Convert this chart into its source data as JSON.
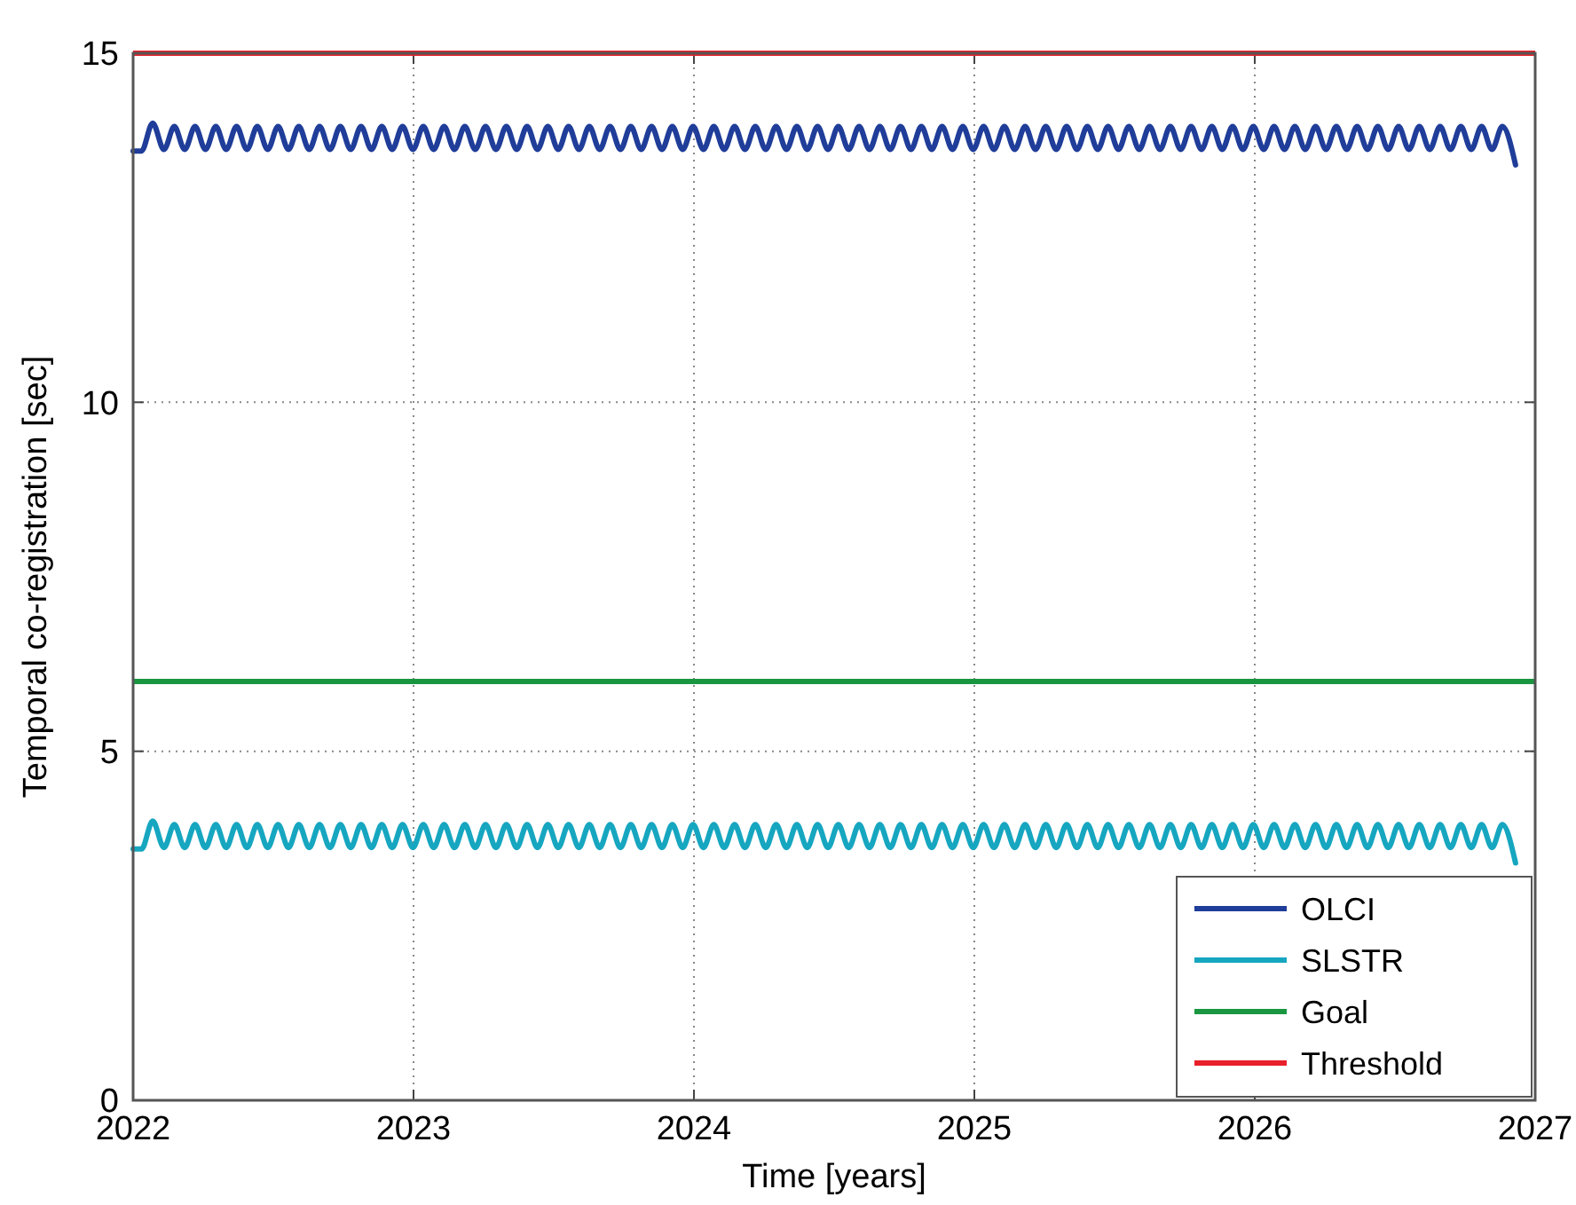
{
  "chart_data": {
    "type": "line",
    "xlabel": "Time [years]",
    "ylabel": "Temporal co-registration [sec]",
    "xlim": [
      2022,
      2027
    ],
    "ylim": [
      0,
      15
    ],
    "xticks": [
      2022,
      2023,
      2024,
      2025,
      2026,
      2027
    ],
    "yticks": [
      0,
      5,
      10,
      15
    ],
    "grid": true,
    "legend": "bottom right",
    "x": [
      2022.0,
      2022.03,
      2022.07,
      2022.11,
      2022.147,
      2022.184,
      2022.221,
      2022.258,
      2022.295,
      2022.332,
      2022.369,
      2022.406,
      2022.443,
      2022.48,
      2022.517,
      2022.554,
      2022.591,
      2022.628,
      2022.665,
      2022.702,
      2022.739,
      2022.776,
      2022.813,
      2022.85,
      2022.887,
      2022.924,
      2022.961,
      2022.998,
      2023.035,
      2023.072,
      2023.109,
      2023.146,
      2023.183,
      2023.22,
      2023.257,
      2023.294,
      2023.331,
      2023.368,
      2023.405,
      2023.442,
      2023.479,
      2023.516,
      2023.553,
      2023.59,
      2023.627,
      2023.664,
      2023.701,
      2023.738,
      2023.775,
      2023.812,
      2023.849,
      2023.886,
      2023.923,
      2023.96,
      2023.997,
      2024.034,
      2024.071,
      2024.108,
      2024.145,
      2024.182,
      2024.219,
      2024.256,
      2024.293,
      2024.33,
      2024.367,
      2024.404,
      2024.441,
      2024.478,
      2024.515,
      2024.552,
      2024.589,
      2024.626,
      2024.663,
      2024.7,
      2024.737,
      2024.774,
      2024.811,
      2024.848,
      2024.885,
      2024.922,
      2024.959,
      2024.996,
      2025.033,
      2025.07,
      2025.107,
      2025.144,
      2025.181,
      2025.218,
      2025.255,
      2025.292,
      2025.329,
      2025.366,
      2025.403,
      2025.44,
      2025.477,
      2025.514,
      2025.551,
      2025.588,
      2025.625,
      2025.662,
      2025.699,
      2025.736,
      2025.773,
      2025.81,
      2025.847,
      2025.884,
      2025.921,
      2025.958,
      2025.995,
      2026.032,
      2026.069,
      2026.106,
      2026.143,
      2026.18,
      2026.217,
      2026.254,
      2026.291,
      2026.328,
      2026.365,
      2026.402,
      2026.439,
      2026.476,
      2026.513,
      2026.55,
      2026.587,
      2026.624,
      2026.661,
      2026.698,
      2026.735,
      2026.772,
      2026.809,
      2026.846,
      2026.883,
      2026.93
    ],
    "series": [
      {
        "name": "OLCI",
        "color": "#1f3d99",
        "values": [
          13.6,
          13.6,
          14.0,
          13.62,
          13.95,
          13.62,
          13.95,
          13.62,
          13.95,
          13.62,
          13.95,
          13.62,
          13.95,
          13.62,
          13.95,
          13.62,
          13.95,
          13.62,
          13.95,
          13.62,
          13.95,
          13.62,
          13.95,
          13.62,
          13.95,
          13.62,
          13.95,
          13.62,
          13.95,
          13.62,
          13.95,
          13.62,
          13.95,
          13.62,
          13.95,
          13.62,
          13.95,
          13.62,
          13.95,
          13.62,
          13.95,
          13.62,
          13.95,
          13.62,
          13.95,
          13.62,
          13.95,
          13.62,
          13.95,
          13.62,
          13.95,
          13.62,
          13.95,
          13.62,
          13.95,
          13.62,
          13.95,
          13.62,
          13.95,
          13.62,
          13.95,
          13.62,
          13.95,
          13.62,
          13.95,
          13.62,
          13.95,
          13.62,
          13.95,
          13.62,
          13.95,
          13.62,
          13.95,
          13.62,
          13.95,
          13.62,
          13.95,
          13.62,
          13.95,
          13.62,
          13.95,
          13.62,
          13.95,
          13.62,
          13.95,
          13.62,
          13.95,
          13.62,
          13.95,
          13.62,
          13.95,
          13.62,
          13.95,
          13.62,
          13.95,
          13.62,
          13.95,
          13.62,
          13.95,
          13.62,
          13.95,
          13.62,
          13.95,
          13.62,
          13.95,
          13.62,
          13.95,
          13.62,
          13.95,
          13.62,
          13.95,
          13.62,
          13.95,
          13.62,
          13.95,
          13.62,
          13.95,
          13.62,
          13.95,
          13.62,
          13.95,
          13.62,
          13.95,
          13.62,
          13.95,
          13.62,
          13.95,
          13.62,
          13.95,
          13.62,
          13.95,
          13.62,
          13.95,
          13.4
        ]
      },
      {
        "name": "SLSTR",
        "color": "#16a6c0",
        "values": [
          3.6,
          3.6,
          4.0,
          3.62,
          3.95,
          3.62,
          3.95,
          3.62,
          3.95,
          3.62,
          3.95,
          3.62,
          3.95,
          3.62,
          3.95,
          3.62,
          3.95,
          3.62,
          3.95,
          3.62,
          3.95,
          3.62,
          3.95,
          3.62,
          3.95,
          3.62,
          3.95,
          3.62,
          3.95,
          3.62,
          3.95,
          3.62,
          3.95,
          3.62,
          3.95,
          3.62,
          3.95,
          3.62,
          3.95,
          3.62,
          3.95,
          3.62,
          3.95,
          3.62,
          3.95,
          3.62,
          3.95,
          3.62,
          3.95,
          3.62,
          3.95,
          3.62,
          3.95,
          3.62,
          3.95,
          3.62,
          3.95,
          3.62,
          3.95,
          3.62,
          3.95,
          3.62,
          3.95,
          3.62,
          3.95,
          3.62,
          3.95,
          3.62,
          3.95,
          3.62,
          3.95,
          3.62,
          3.95,
          3.62,
          3.95,
          3.62,
          3.95,
          3.62,
          3.95,
          3.62,
          3.95,
          3.62,
          3.95,
          3.62,
          3.95,
          3.62,
          3.95,
          3.62,
          3.95,
          3.62,
          3.95,
          3.62,
          3.95,
          3.62,
          3.95,
          3.62,
          3.95,
          3.62,
          3.95,
          3.62,
          3.95,
          3.62,
          3.95,
          3.62,
          3.95,
          3.62,
          3.95,
          3.62,
          3.95,
          3.62,
          3.95,
          3.62,
          3.95,
          3.62,
          3.95,
          3.62,
          3.95,
          3.62,
          3.95,
          3.62,
          3.95,
          3.62,
          3.95,
          3.62,
          3.95,
          3.62,
          3.95,
          3.62,
          3.95,
          3.62,
          3.95,
          3.62,
          3.95,
          3.4
        ]
      }
    ],
    "ref_lines": [
      {
        "axis": "y",
        "value": 6,
        "label": "Goal",
        "color": "#1a9641"
      },
      {
        "axis": "y",
        "value": 15,
        "label": "Threshold",
        "color": "#e8202a"
      }
    ]
  }
}
